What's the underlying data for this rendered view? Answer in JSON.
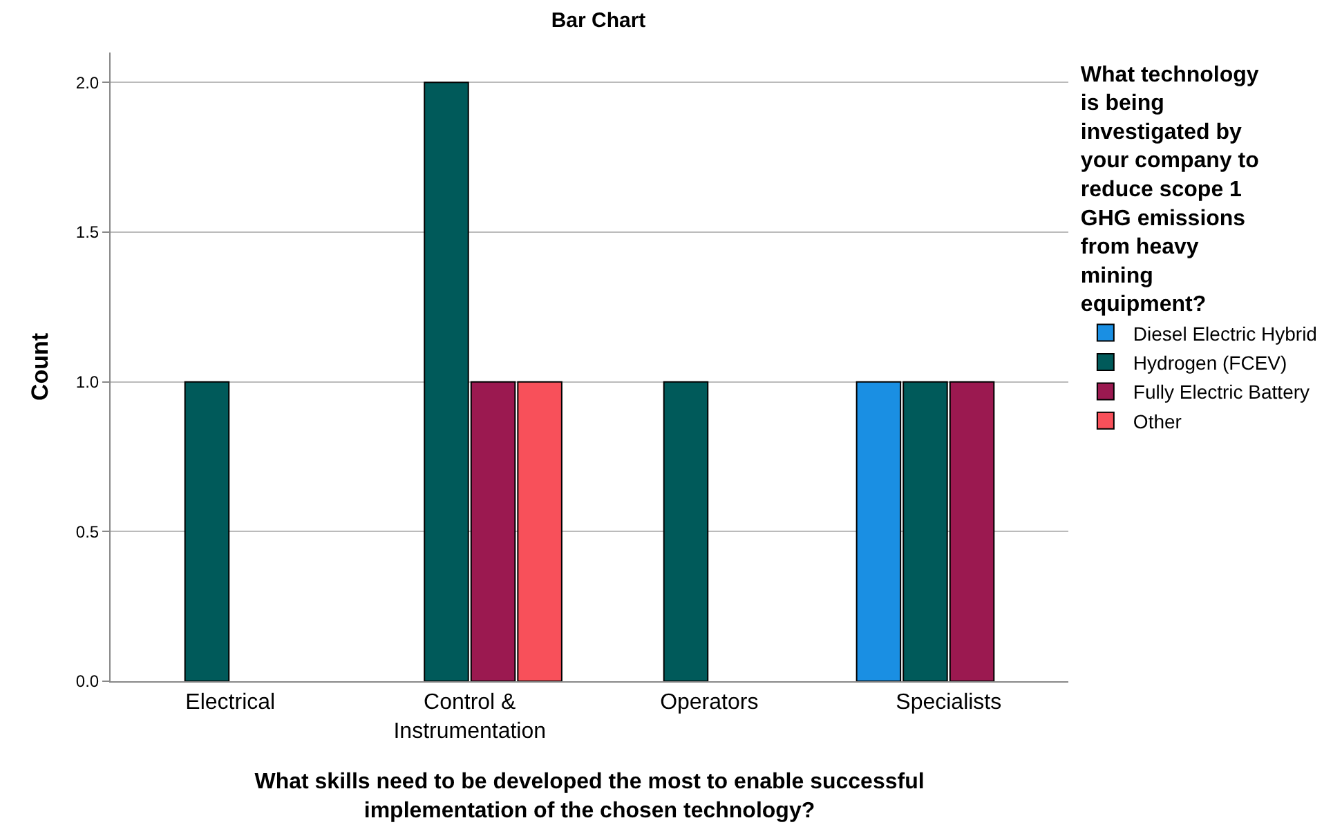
{
  "chart_data": {
    "type": "bar",
    "title": "Bar Chart",
    "xlabel": "What skills need to be developed the most to enable successful implementation of the chosen technology?",
    "ylabel": "Count",
    "legend_title": "What technology is being investigated by your company to reduce scope 1 GHG emissions from heavy mining equipment?",
    "categories": [
      "Electrical",
      "Control & Instrumentation",
      "Operators",
      "Specialists"
    ],
    "series": [
      {
        "name": "Diesel Electric Hybrid",
        "color": "#1a8fe3",
        "values": [
          null,
          null,
          null,
          1
        ]
      },
      {
        "name": "Hydrogen (FCEV)",
        "color": "#005a5a",
        "values": [
          1,
          2,
          1,
          1
        ]
      },
      {
        "name": "Fully Electric Battery",
        "color": "#9b1950",
        "values": [
          null,
          1,
          null,
          1
        ]
      },
      {
        "name": "Other",
        "color": "#f8505a",
        "values": [
          null,
          1,
          null,
          null
        ]
      }
    ],
    "ylim": [
      0,
      2.1
    ],
    "yticks": [
      {
        "value": 0,
        "label": "0.0"
      },
      {
        "value": 0.5,
        "label": "0.5"
      },
      {
        "value": 1,
        "label": "1.0"
      },
      {
        "value": 1.5,
        "label": "1.5"
      },
      {
        "value": 2,
        "label": "2.0"
      }
    ],
    "grid": "y",
    "legend": "right"
  }
}
